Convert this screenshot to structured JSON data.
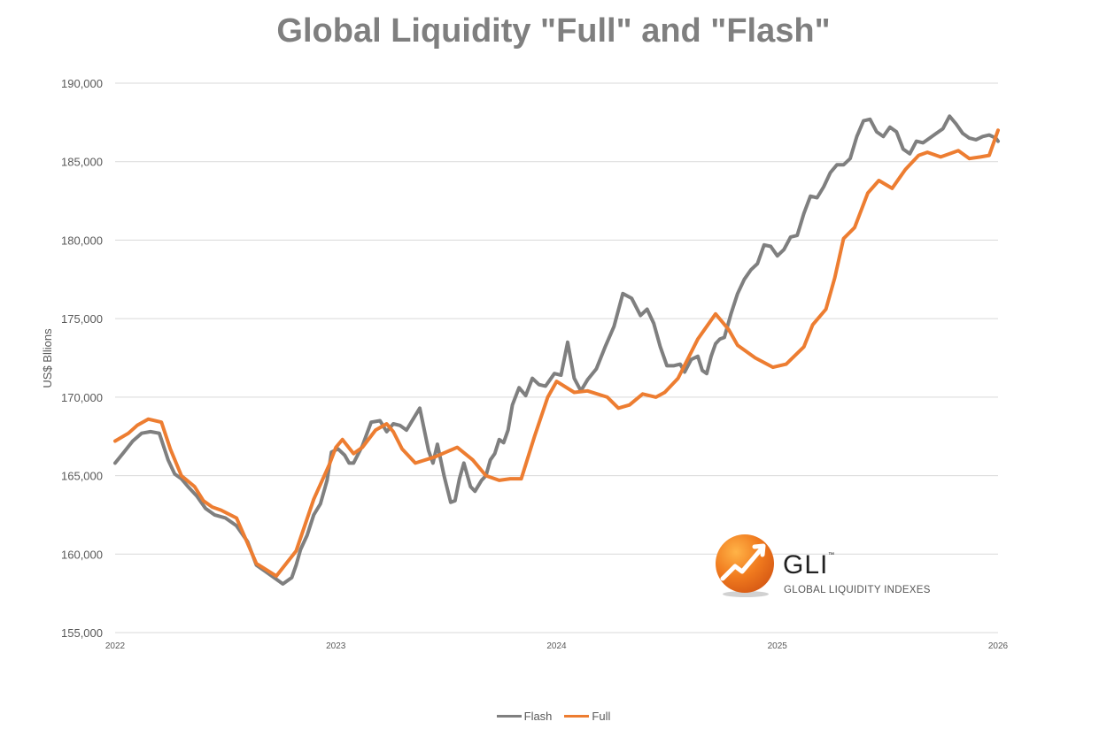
{
  "chart_data": {
    "type": "line",
    "title": "Global Liquidity \"Full\" and \"Flash\"",
    "xlabel": "",
    "ylabel": "US$ Bllions",
    "ylim": [
      155000,
      190000
    ],
    "xlim": [
      2022,
      2026
    ],
    "yticks": [
      155000,
      160000,
      165000,
      170000,
      175000,
      180000,
      185000,
      190000
    ],
    "ytick_labels": [
      "155,000",
      "160,000",
      "165,000",
      "170,000",
      "175,000",
      "180,000",
      "185,000",
      "190,000"
    ],
    "xticks": [
      2022,
      2023,
      2024,
      2025,
      2026
    ],
    "xtick_labels": [
      "2022",
      "2023",
      "2024",
      "2025",
      "2026"
    ],
    "grid": "horizontal",
    "legend": "bottom-center",
    "series": [
      {
        "name": "Flash",
        "color": "#7f7f7f",
        "x": [
          2022.0,
          2022.04,
          2022.08,
          2022.12,
          2022.16,
          2022.2,
          2022.24,
          2022.27,
          2022.3,
          2022.33,
          2022.37,
          2022.41,
          2022.45,
          2022.5,
          2022.55,
          2022.6,
          2022.64,
          2022.68,
          2022.72,
          2022.76,
          2022.8,
          2022.82,
          2022.84,
          2022.87,
          2022.9,
          2022.93,
          2022.96,
          2022.98,
          2023.01,
          2023.04,
          2023.06,
          2023.08,
          2023.12,
          2023.16,
          2023.2,
          2023.23,
          2023.26,
          2023.29,
          2023.32,
          2023.35,
          2023.38,
          2023.42,
          2023.44,
          2023.46,
          2023.49,
          2023.52,
          2023.54,
          2023.56,
          2023.58,
          2023.61,
          2023.63,
          2023.66,
          2023.68,
          2023.7,
          2023.72,
          2023.74,
          2023.76,
          2023.78,
          2023.8,
          2023.83,
          2023.86,
          2023.89,
          2023.92,
          2023.95,
          2023.97,
          2023.99,
          2024.02,
          2024.05,
          2024.08,
          2024.11,
          2024.14,
          2024.18,
          2024.22,
          2024.26,
          2024.3,
          2024.34,
          2024.38,
          2024.41,
          2024.44,
          2024.47,
          2024.5,
          2024.53,
          2024.56,
          2024.58,
          2024.61,
          2024.64,
          2024.66,
          2024.68,
          2024.7,
          2024.72,
          2024.74,
          2024.76,
          2024.79,
          2024.82,
          2024.85,
          2024.88,
          2024.91,
          2024.94,
          2024.97,
          2025.0,
          2025.03,
          2025.06,
          2025.09,
          2025.12,
          2025.15,
          2025.18,
          2025.21,
          2025.24,
          2025.27,
          2025.3,
          2025.33,
          2025.36,
          2025.39,
          2025.42,
          2025.45,
          2025.48,
          2025.51,
          2025.54,
          2025.57,
          2025.6,
          2025.63,
          2025.66,
          2025.69,
          2025.72,
          2025.75,
          2025.78,
          2025.81,
          2025.84,
          2025.87,
          2025.9,
          2025.93,
          2025.96,
          2025.99,
          2026.0
        ],
        "values": [
          165800,
          166500,
          167200,
          167700,
          167800,
          167700,
          166000,
          165100,
          164800,
          164300,
          163700,
          162900,
          162500,
          162300,
          161800,
          160800,
          159300,
          158900,
          158500,
          158100,
          158500,
          159300,
          160300,
          161200,
          162500,
          163200,
          164700,
          166500,
          166700,
          166300,
          165800,
          165800,
          166900,
          168400,
          168500,
          167800,
          168300,
          168200,
          167900,
          168600,
          169300,
          166600,
          165800,
          167000,
          165000,
          163300,
          163400,
          164800,
          165800,
          164300,
          164000,
          164700,
          165000,
          166000,
          166400,
          167300,
          167100,
          167900,
          169500,
          170600,
          170100,
          171200,
          170800,
          170700,
          171100,
          171500,
          171400,
          173500,
          171200,
          170400,
          171100,
          171800,
          173200,
          174500,
          176600,
          176300,
          175200,
          175600,
          174700,
          173200,
          172000,
          172000,
          172100,
          171600,
          172400,
          172600,
          171700,
          171500,
          172600,
          173400,
          173700,
          173800,
          175300,
          176600,
          177500,
          178100,
          178500,
          179700,
          179600,
          179000,
          179400,
          180200,
          180300,
          181700,
          182800,
          182700,
          183400,
          184300,
          184800,
          184800,
          185200,
          186600,
          187600,
          187700,
          186900,
          186600,
          187200,
          186900,
          185800,
          185500,
          186300,
          186200,
          186500,
          186800,
          187100,
          187900,
          187400,
          186800,
          186500,
          186400,
          186600,
          186700,
          186500,
          186300
        ],
        "note": ""
      },
      {
        "name": "Full",
        "color": "#ed7d31",
        "x": [
          2022.0,
          2022.06,
          2022.1,
          2022.15,
          2022.21,
          2022.25,
          2022.3,
          2022.36,
          2022.4,
          2022.44,
          2022.48,
          2022.55,
          2022.64,
          2022.73,
          2022.82,
          2022.9,
          2022.97,
          2023.0,
          2023.03,
          2023.08,
          2023.12,
          2023.18,
          2023.23,
          2023.26,
          2023.3,
          2023.36,
          2023.45,
          2023.55,
          2023.62,
          2023.68,
          2023.74,
          2023.79,
          2023.84,
          2023.9,
          2023.96,
          2024.0,
          2024.08,
          2024.14,
          2024.23,
          2024.28,
          2024.33,
          2024.39,
          2024.45,
          2024.49,
          2024.55,
          2024.64,
          2024.72,
          2024.78,
          2024.82,
          2024.9,
          2024.98,
          2025.04,
          2025.12,
          2025.16,
          2025.22,
          2025.26,
          2025.3,
          2025.35,
          2025.41,
          2025.46,
          2025.52,
          2025.58,
          2025.64,
          2025.68,
          2025.74,
          2025.82,
          2025.87,
          2025.92,
          2025.96,
          2026.0
        ],
        "values": [
          167200,
          167700,
          168200,
          168600,
          168400,
          166700,
          165000,
          164300,
          163400,
          163000,
          162800,
          162300,
          159400,
          158600,
          160200,
          163500,
          165700,
          166800,
          167300,
          166400,
          166800,
          167900,
          168300,
          167800,
          166700,
          165800,
          166200,
          166800,
          166000,
          165000,
          164700,
          164800,
          164800,
          167500,
          170000,
          171000,
          170300,
          170400,
          170000,
          169300,
          169500,
          170200,
          170000,
          170300,
          171200,
          173700,
          175300,
          174300,
          173300,
          172500,
          171900,
          172100,
          173200,
          174600,
          175600,
          177600,
          180100,
          180800,
          183000,
          183800,
          183300,
          184500,
          185400,
          185600,
          185300,
          185700,
          185200,
          185300,
          185400,
          187000
        ],
        "note": ""
      }
    ]
  },
  "logo": {
    "mark": "GLI",
    "tm": "™",
    "subtitle": "GLOBAL LIQUIDITY INDEXES"
  }
}
